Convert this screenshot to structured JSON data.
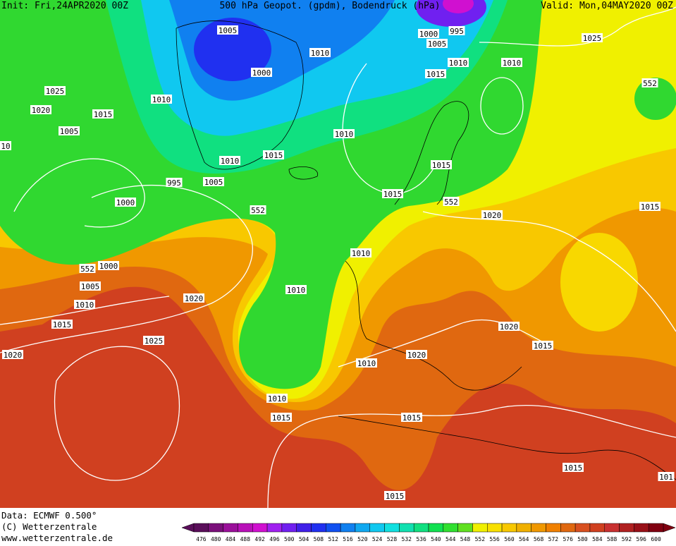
{
  "header": {
    "init": "Init: Fri,24APR2020 00Z",
    "title": "500 hPa Geopot. (gpdm), Bodendruck (hPa)",
    "valid": "Valid: Mon,04MAY2020 00Z"
  },
  "isobar_labels": [
    "1005",
    "995",
    "1000",
    "1005",
    "1010",
    "1000",
    "1010",
    "1010",
    "1025",
    "1015",
    "1025",
    "1020",
    "1015",
    "1010",
    "1005",
    "10",
    "1010",
    "1015",
    "1010",
    "1015",
    "995",
    "1005",
    "1000",
    "1015",
    "552",
    "552",
    "1020",
    "1015",
    "1010",
    "552",
    "1000",
    "1005",
    "1010",
    "1020",
    "1010",
    "1015",
    "1020",
    "1025",
    "1015",
    "1020",
    "1020",
    "1010",
    "1010",
    "1015",
    "1015",
    "1015",
    "101",
    "1015",
    "552"
  ],
  "footer": {
    "data": "Data: ECMWF   0.500°",
    "copyright": "(C) Wetterzentrale",
    "url": "www.wetterzentrale.de"
  },
  "color_scale": {
    "ticks": [
      476,
      480,
      484,
      488,
      492,
      496,
      500,
      504,
      508,
      512,
      516,
      520,
      524,
      528,
      532,
      536,
      540,
      544,
      548,
      552,
      556,
      560,
      564,
      568,
      572,
      576,
      580,
      584,
      588,
      592,
      596,
      600
    ],
    "colors": [
      "#5a0e5a",
      "#7a0f7a",
      "#9a109a",
      "#b810b8",
      "#d010d0",
      "#a020f0",
      "#7020f0",
      "#4020e8",
      "#2030f0",
      "#1050f0",
      "#1080f0",
      "#10a8f0",
      "#10c8f0",
      "#10e0e0",
      "#10e0b0",
      "#10e080",
      "#10e050",
      "#30e030",
      "#60e020",
      "#f0f000",
      "#f8e000",
      "#f8c800",
      "#f0b000",
      "#f09800",
      "#f08000",
      "#e06810",
      "#d85020",
      "#d04020",
      "#c83030",
      "#b02020",
      "#981018",
      "#800010"
    ]
  }
}
